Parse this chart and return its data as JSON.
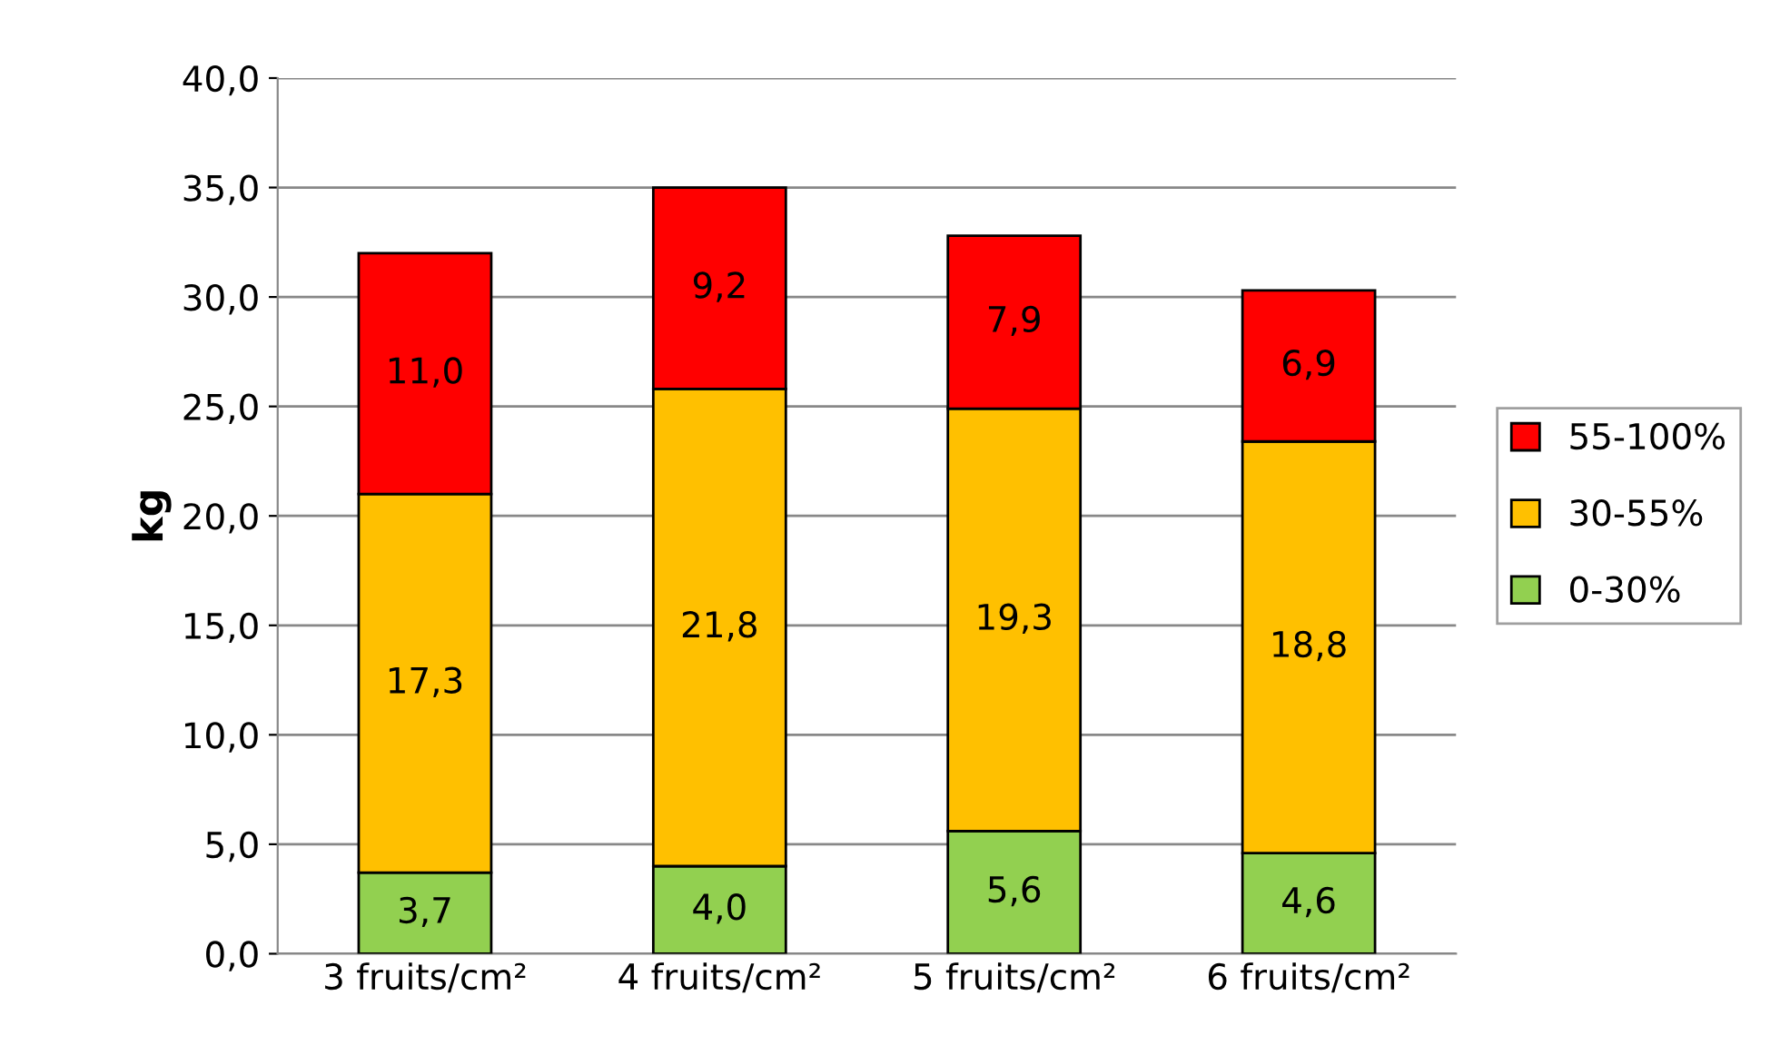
{
  "chart_data": {
    "type": "bar",
    "stacked": true,
    "ylabel": "kg",
    "categories": [
      "3 fruits/cm²",
      "4 fruits/cm²",
      "5 fruits/cm²",
      "6 fruits/cm²"
    ],
    "series": [
      {
        "name": "0-30%",
        "color": "#92d050",
        "values": [
          3.7,
          4.0,
          5.6,
          4.6
        ],
        "value_labels": [
          "3,7",
          "4,0",
          "5,6",
          "4,6"
        ]
      },
      {
        "name": "30-55%",
        "color": "#ffc000",
        "values": [
          17.3,
          21.8,
          19.3,
          18.8
        ],
        "value_labels": [
          "17,3",
          "21,8",
          "19,3",
          "18,8"
        ]
      },
      {
        "name": "55-100%",
        "color": "#ff0000",
        "values": [
          11.0,
          9.2,
          7.9,
          6.9
        ],
        "value_labels": [
          "11,0",
          "9,2",
          "7,9",
          "6,9"
        ]
      }
    ],
    "ylim": [
      0,
      40
    ],
    "yticks": [
      {
        "value": 0,
        "label": "0,0"
      },
      {
        "value": 5,
        "label": "5,0"
      },
      {
        "value": 10,
        "label": "10,0"
      },
      {
        "value": 15,
        "label": "15,0"
      },
      {
        "value": 20,
        "label": "20,0"
      },
      {
        "value": 25,
        "label": "25,0"
      },
      {
        "value": 30,
        "label": "30,0"
      },
      {
        "value": 35,
        "label": "35,0"
      },
      {
        "value": 40,
        "label": "40,0"
      }
    ],
    "grid": "y",
    "legend": "right"
  }
}
